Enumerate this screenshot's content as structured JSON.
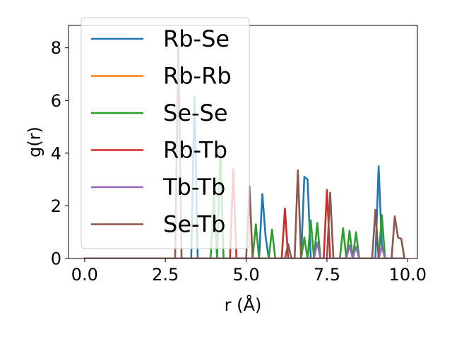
{
  "chart_data": {
    "type": "line",
    "xlabel": "r (Å)",
    "ylabel": "g(r)",
    "xlim": [
      -0.5,
      10.3
    ],
    "ylim": [
      0,
      8.85
    ],
    "xticks": [
      0.0,
      2.5,
      5.0,
      7.5,
      10.0
    ],
    "xtick_labels": [
      "0.0",
      "2.5",
      "5.0",
      "7.5",
      "10.0"
    ],
    "yticks": [
      0,
      2,
      4,
      6,
      8
    ],
    "ytick_labels": [
      "0",
      "2",
      "4",
      "6",
      "8"
    ],
    "grid": false,
    "legend_position": "top-left",
    "series": [
      {
        "name": "Rb-Se",
        "color": "#1f77b4",
        "points": [
          [
            0,
            0
          ],
          [
            3.3,
            0
          ],
          [
            3.4,
            6.15
          ],
          [
            3.5,
            0
          ],
          [
            5.4,
            0
          ],
          [
            5.5,
            2.45
          ],
          [
            5.6,
            0.85
          ],
          [
            5.7,
            0
          ],
          [
            6.7,
            0
          ],
          [
            6.8,
            3.1
          ],
          [
            6.9,
            3.0
          ],
          [
            7.0,
            0
          ],
          [
            9.0,
            0
          ],
          [
            9.1,
            3.5
          ],
          [
            9.2,
            0.5
          ],
          [
            9.3,
            0
          ],
          [
            9.9,
            0
          ]
        ]
      },
      {
        "name": "Rb-Rb",
        "color": "#ff7f0e",
        "points": [
          [
            0,
            0
          ],
          [
            9.9,
            0
          ]
        ]
      },
      {
        "name": "Se-Se",
        "color": "#2ca02c",
        "points": [
          [
            0,
            0
          ],
          [
            3.9,
            0
          ],
          [
            4.0,
            2.4
          ],
          [
            4.1,
            0
          ],
          [
            4.2,
            4.15
          ],
          [
            4.3,
            0
          ],
          [
            5.2,
            0
          ],
          [
            5.3,
            1.3
          ],
          [
            5.4,
            0
          ],
          [
            5.7,
            0
          ],
          [
            5.8,
            1.1
          ],
          [
            5.9,
            0
          ],
          [
            6.7,
            0
          ],
          [
            6.8,
            0.8
          ],
          [
            6.9,
            0
          ],
          [
            7.0,
            1.45
          ],
          [
            7.1,
            0
          ],
          [
            7.2,
            1.35
          ],
          [
            7.3,
            0
          ],
          [
            7.9,
            0
          ],
          [
            8.0,
            1.15
          ],
          [
            8.1,
            0
          ],
          [
            8.2,
            1.05
          ],
          [
            8.3,
            0
          ],
          [
            8.4,
            1.0
          ],
          [
            8.5,
            0
          ],
          [
            9.1,
            0
          ],
          [
            9.2,
            1.65
          ],
          [
            9.3,
            0
          ],
          [
            9.9,
            0
          ]
        ]
      },
      {
        "name": "Rb-Tb",
        "color": "#d62728",
        "points": [
          [
            0,
            0
          ],
          [
            4.5,
            0
          ],
          [
            4.6,
            3.4
          ],
          [
            4.7,
            0
          ],
          [
            6.1,
            0
          ],
          [
            6.2,
            1.9
          ],
          [
            6.3,
            0
          ],
          [
            7.4,
            0
          ],
          [
            7.5,
            2.6
          ],
          [
            7.6,
            0
          ],
          [
            9.9,
            0
          ]
        ]
      },
      {
        "name": "Tb-Tb",
        "color": "#9467bd",
        "points": [
          [
            0,
            0
          ],
          [
            7.1,
            0
          ],
          [
            7.2,
            0.6
          ],
          [
            7.3,
            0
          ],
          [
            8.1,
            0
          ],
          [
            8.2,
            0.5
          ],
          [
            8.3,
            0
          ],
          [
            8.4,
            0.45
          ],
          [
            8.5,
            0
          ],
          [
            9.1,
            0
          ],
          [
            9.2,
            0.45
          ],
          [
            9.3,
            0
          ],
          [
            9.9,
            0
          ]
        ]
      },
      {
        "name": "Se-Tb",
        "color": "#8c564b",
        "points": [
          [
            0,
            0
          ],
          [
            2.8,
            0
          ],
          [
            2.9,
            8.1
          ],
          [
            3.0,
            0
          ],
          [
            5.0,
            0
          ],
          [
            5.1,
            2.75
          ],
          [
            5.2,
            0
          ],
          [
            6.2,
            0
          ],
          [
            6.3,
            0.55
          ],
          [
            6.4,
            0
          ],
          [
            6.5,
            0
          ],
          [
            6.6,
            3.35
          ],
          [
            6.7,
            0
          ],
          [
            7.5,
            0
          ],
          [
            7.6,
            2.5
          ],
          [
            7.7,
            0
          ],
          [
            8.9,
            0
          ],
          [
            9.0,
            1.85
          ],
          [
            9.1,
            0
          ],
          [
            9.5,
            0
          ],
          [
            9.6,
            1.6
          ],
          [
            9.7,
            0.8
          ],
          [
            9.8,
            0.75
          ],
          [
            9.9,
            0
          ]
        ]
      }
    ]
  }
}
